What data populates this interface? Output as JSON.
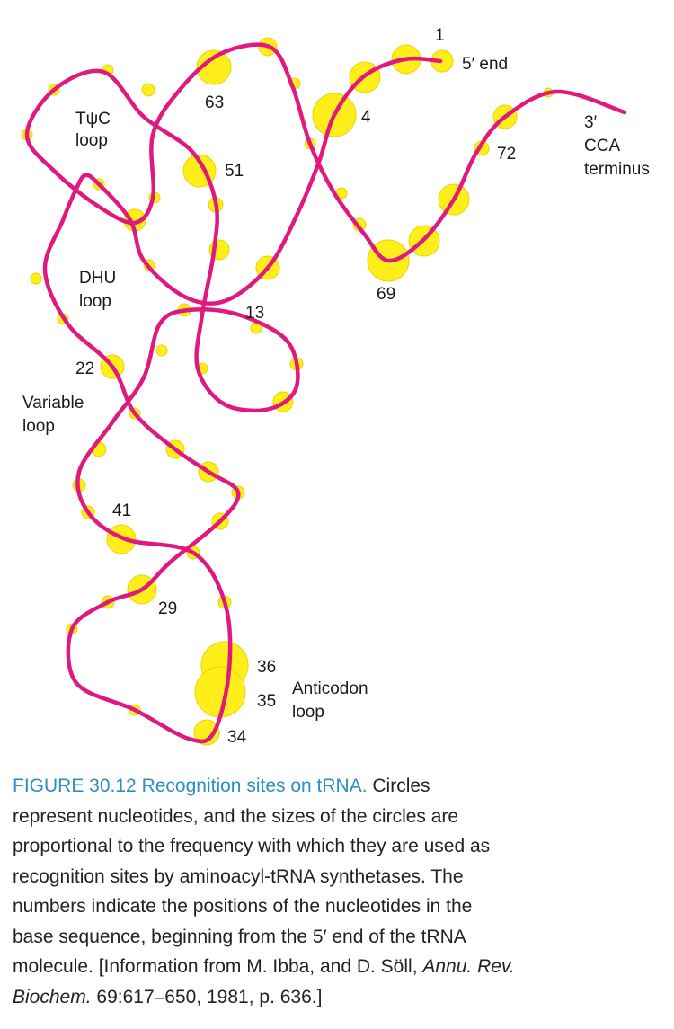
{
  "labels": {
    "n1": "1",
    "five_end": "5′ end",
    "n63": "63",
    "n4": "4",
    "tpsic_1": "TψC",
    "tpsic_2": "loop",
    "n51": "51",
    "n72": "72",
    "three_1": "3′",
    "three_2": "CCA",
    "three_3": "terminus",
    "n69": "69",
    "dhu_1": "DHU",
    "dhu_2": "loop",
    "n13": "13",
    "n22": "22",
    "var_1": "Variable",
    "var_2": "loop",
    "n41": "41",
    "n29": "29",
    "n36": "36",
    "n35": "35",
    "n34": "34",
    "anti_1": "Anticodon",
    "anti_2": "loop"
  },
  "caption": {
    "figure_label": "FIGURE 30.12",
    "figure_title": "Recognition sites on tRNA.",
    "lines": [
      "Circles",
      "represent nucleotides, and the sizes of the circles are",
      "proportional to the frequency with which they are used as",
      "recognition sites by aminoacyl-tRNA synthetases. The",
      "numbers indicate the positions of the nucleotides in the",
      "base sequence, beginning from the 5′ end of the tRNA",
      "molecule. [Information from M. Ibba, and D. Söll,",
      "69:617–650, 1981, p. 636.]"
    ],
    "journal_1": "Annu. Rev.",
    "journal_2": "Biochem."
  }
}
